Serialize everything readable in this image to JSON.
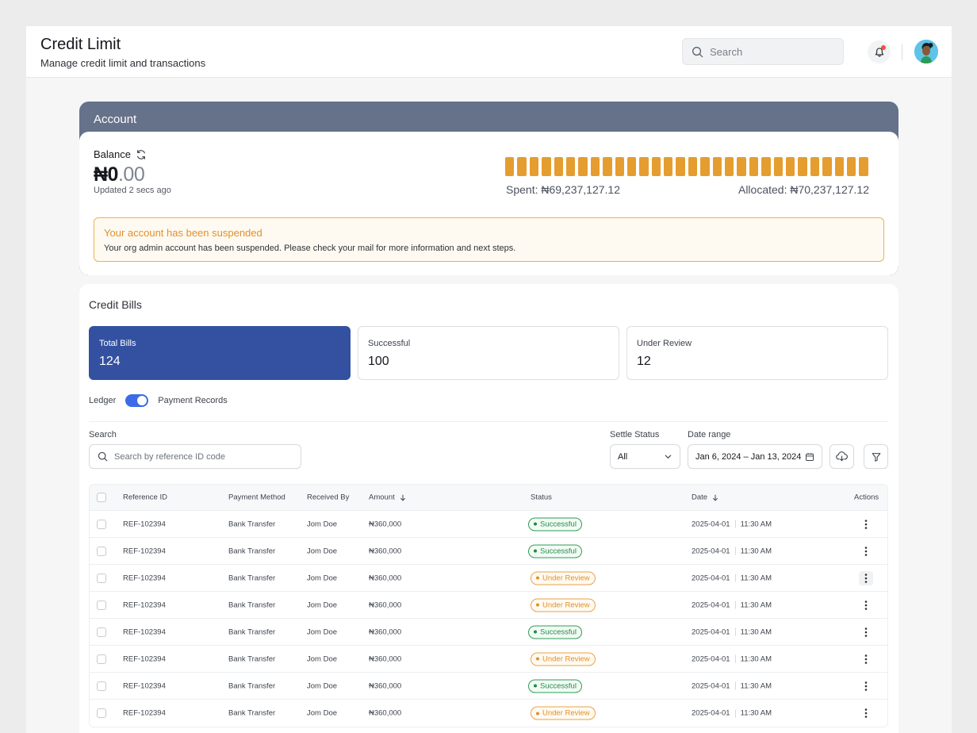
{
  "header": {
    "title": "Credit Limit",
    "subtitle": "Manage credit limit and transactions",
    "search_placeholder": "Search"
  },
  "account": {
    "title": "Account",
    "balance_label": "Balance",
    "balance_whole": "₦0",
    "balance_decimal": ".00",
    "updated": "Updated 2 secs ago",
    "spent": "Spent: ₦69,237,127.12",
    "allocated": "Allocated: ₦70,237,127.12",
    "usage_fraction": 0.9858,
    "bar_color": "#e59d30",
    "alert": {
      "title": "Your account has been suspended",
      "message": "Your org admin account has been suspended. Please check your mail for more information and next steps."
    }
  },
  "bills": {
    "title": "Credit Bills",
    "stats": [
      {
        "label": "Total Bills",
        "value": "124"
      },
      {
        "label": "Successful",
        "value": "100"
      },
      {
        "label": "Under Review",
        "value": "12"
      }
    ],
    "toggle_left": "Ledger",
    "toggle_right": "Payment Records",
    "search_label": "Search",
    "search_placeholder": "Search by reference ID code",
    "settle_label": "Settle Status",
    "settle_value": "All",
    "date_label": "Date range",
    "date_value": "Jan 6, 2024 – Jan 13, 2024",
    "columns": {
      "ref": "Reference ID",
      "method": "Payment Method",
      "received": "Received By",
      "amount": "Amount",
      "status": "Status",
      "date": "Date",
      "actions": "Actions"
    },
    "rows": [
      {
        "ref": "REF-102394",
        "method": "Bank Transfer",
        "received": "Jom Doe",
        "amount": "₦360,000",
        "status": "Successful",
        "date": "2025-04-01",
        "time": "11:30 AM"
      },
      {
        "ref": "REF-102394",
        "method": "Bank Transfer",
        "received": "Jom Doe",
        "amount": "₦360,000",
        "status": "Successful",
        "date": "2025-04-01",
        "time": "11:30 AM"
      },
      {
        "ref": "REF-102394",
        "method": "Bank Transfer",
        "received": "Jom Doe",
        "amount": "₦360,000",
        "status": "Under Review",
        "date": "2025-04-01",
        "time": "11:30 AM"
      },
      {
        "ref": "REF-102394",
        "method": "Bank Transfer",
        "received": "Jom Doe",
        "amount": "₦360,000",
        "status": "Under Review",
        "date": "2025-04-01",
        "time": "11:30 AM"
      },
      {
        "ref": "REF-102394",
        "method": "Bank Transfer",
        "received": "Jom Doe",
        "amount": "₦360,000",
        "status": "Successful",
        "date": "2025-04-01",
        "time": "11:30 AM"
      },
      {
        "ref": "REF-102394",
        "method": "Bank Transfer",
        "received": "Jom Doe",
        "amount": "₦360,000",
        "status": "Under Review",
        "date": "2025-04-01",
        "time": "11:30 AM"
      },
      {
        "ref": "REF-102394",
        "method": "Bank Transfer",
        "received": "Jom Doe",
        "amount": "₦360,000",
        "status": "Successful",
        "date": "2025-04-01",
        "time": "11:30 AM"
      },
      {
        "ref": "REF-102394",
        "method": "Bank Transfer",
        "received": "Jom Doe",
        "amount": "₦360,000",
        "status": "Under Review",
        "date": "2025-04-01",
        "time": "11:30 AM"
      }
    ]
  },
  "colors": {
    "accent_blue": "#3351a0",
    "account_header": "#65728a",
    "success": "#248a47",
    "warning": "#e0912a"
  },
  "icons": [
    "search-icon",
    "bell-icon",
    "refresh-icon",
    "chevron-down-icon",
    "calendar-icon",
    "download-icon",
    "filter-icon",
    "sort-down-icon",
    "more-vertical-icon"
  ]
}
